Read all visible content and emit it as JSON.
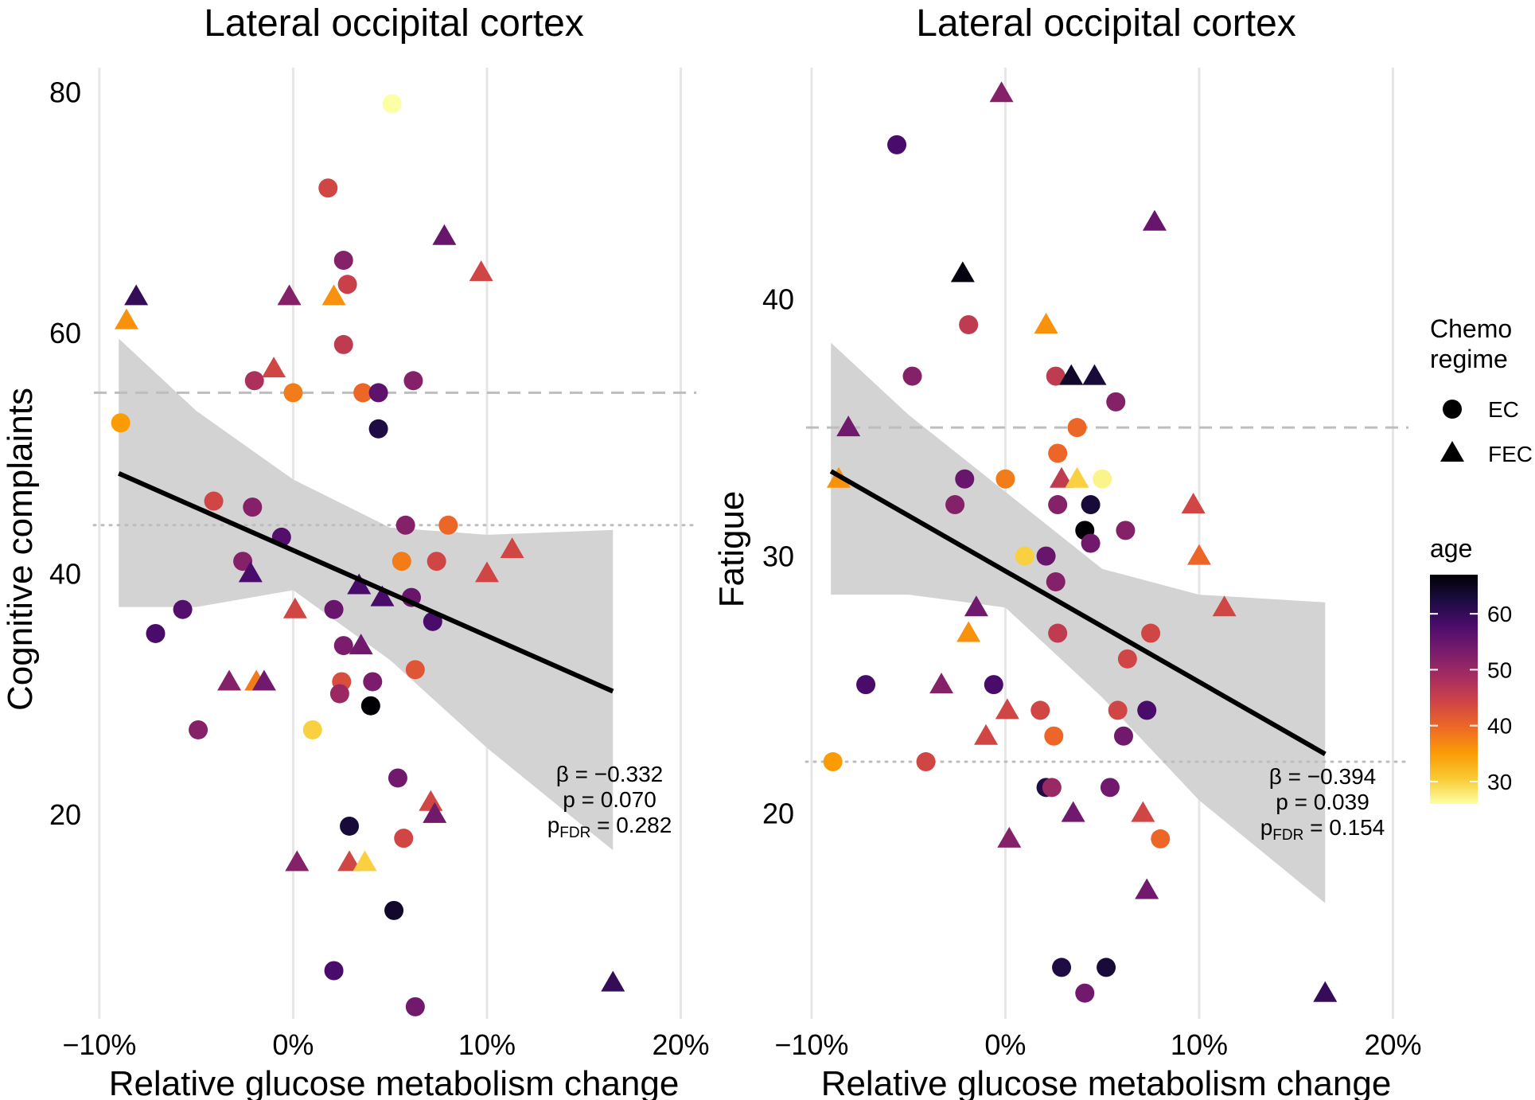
{
  "chart_data": [
    {
      "type": "scatter",
      "title": "Lateral occipital cortex",
      "xlabel": "Relative glucose metabolism change",
      "ylabel": "Cognitive complaints",
      "xlim": [
        -10.2,
        20.8
      ],
      "ylim": [
        3,
        82
      ],
      "xticks": [
        -10,
        0,
        10,
        20
      ],
      "xtick_labels": [
        "−10%",
        "0%",
        "10%",
        "20%"
      ],
      "yticks": [
        20,
        40,
        60,
        80
      ],
      "ytick_labels": [
        "20",
        "40",
        "60",
        "80"
      ],
      "hline_dashed": 55,
      "hline_dotted": 44,
      "fit": {
        "x0": -9,
        "y0": 48.3,
        "x1": 16.5,
        "y1": 30.2
      },
      "band": {
        "x": [
          -9,
          -5,
          0,
          5,
          10,
          16.5
        ],
        "upper": [
          59.5,
          53.5,
          47.8,
          43.8,
          43.2,
          43.6
        ],
        "lower": [
          37.2,
          37.2,
          38.6,
          32.8,
          25.5,
          17
        ]
      },
      "stats": {
        "beta": "β = −0.332",
        "p": "p = 0.070",
        "pfdr_prefix": "p",
        "pfdr_sub": "FDR",
        "pfdr_value": " = 0.282"
      },
      "points": [
        {
          "x": 5.1,
          "y": 79,
          "age": 26,
          "regime": "EC"
        },
        {
          "x": 1.8,
          "y": 72,
          "age": 44,
          "regime": "EC"
        },
        {
          "x": 2.6,
          "y": 66,
          "age": 52,
          "regime": "EC"
        },
        {
          "x": 2.8,
          "y": 64,
          "age": 45,
          "regime": "EC"
        },
        {
          "x": 2.6,
          "y": 59,
          "age": 46,
          "regime": "EC"
        },
        {
          "x": 6.2,
          "y": 56,
          "age": 52,
          "regime": "EC"
        },
        {
          "x": -2,
          "y": 56,
          "age": 48,
          "regime": "EC"
        },
        {
          "x": 0,
          "y": 55,
          "age": 38,
          "regime": "EC"
        },
        {
          "x": 3.6,
          "y": 55,
          "age": 40,
          "regime": "EC"
        },
        {
          "x": 4.4,
          "y": 55,
          "age": 56,
          "regime": "EC"
        },
        {
          "x": 4.4,
          "y": 52,
          "age": 62,
          "regime": "EC"
        },
        {
          "x": -8.9,
          "y": 52.5,
          "age": 35,
          "regime": "EC"
        },
        {
          "x": -4.1,
          "y": 46,
          "age": 44,
          "regime": "EC"
        },
        {
          "x": -2.1,
          "y": 45.5,
          "age": 52,
          "regime": "EC"
        },
        {
          "x": -0.6,
          "y": 43,
          "age": 57,
          "regime": "EC"
        },
        {
          "x": 5.8,
          "y": 44,
          "age": 52,
          "regime": "EC"
        },
        {
          "x": 8,
          "y": 44,
          "age": 40,
          "regime": "EC"
        },
        {
          "x": -2.6,
          "y": 41,
          "age": 52,
          "regime": "EC"
        },
        {
          "x": 5.6,
          "y": 41,
          "age": 38,
          "regime": "EC"
        },
        {
          "x": 7.4,
          "y": 41,
          "age": 44,
          "regime": "EC"
        },
        {
          "x": 6.1,
          "y": 38,
          "age": 55,
          "regime": "EC"
        },
        {
          "x": 7.2,
          "y": 36,
          "age": 58,
          "regime": "EC"
        },
        {
          "x": -5.7,
          "y": 37,
          "age": 57,
          "regime": "EC"
        },
        {
          "x": 2.1,
          "y": 37,
          "age": 55,
          "regime": "EC"
        },
        {
          "x": -7.1,
          "y": 35,
          "age": 58,
          "regime": "EC"
        },
        {
          "x": 2.6,
          "y": 34,
          "age": 53,
          "regime": "EC"
        },
        {
          "x": 6.3,
          "y": 32,
          "age": 42,
          "regime": "EC"
        },
        {
          "x": 2.5,
          "y": 31,
          "age": 43,
          "regime": "EC"
        },
        {
          "x": 4.1,
          "y": 31,
          "age": 53,
          "regime": "EC"
        },
        {
          "x": 2.4,
          "y": 30,
          "age": 50,
          "regime": "EC"
        },
        {
          "x": 4,
          "y": 29,
          "age": 67,
          "regime": "EC"
        },
        {
          "x": -4.9,
          "y": 27,
          "age": 52,
          "regime": "EC"
        },
        {
          "x": 1,
          "y": 27,
          "age": 30,
          "regime": "EC"
        },
        {
          "x": 5.4,
          "y": 23,
          "age": 54,
          "regime": "EC"
        },
        {
          "x": 2.9,
          "y": 19,
          "age": 63,
          "regime": "EC"
        },
        {
          "x": 5.7,
          "y": 18,
          "age": 44,
          "regime": "EC"
        },
        {
          "x": 5.2,
          "y": 12,
          "age": 64,
          "regime": "EC"
        },
        {
          "x": 2.1,
          "y": 7,
          "age": 58,
          "regime": "EC"
        },
        {
          "x": 6.3,
          "y": 4,
          "age": 54,
          "regime": "EC"
        },
        {
          "x": 7.8,
          "y": 68,
          "age": 55,
          "regime": "FEC"
        },
        {
          "x": 9.7,
          "y": 65,
          "age": 44,
          "regime": "FEC"
        },
        {
          "x": -8.1,
          "y": 63,
          "age": 60,
          "regime": "FEC"
        },
        {
          "x": -0.2,
          "y": 63,
          "age": 52,
          "regime": "FEC"
        },
        {
          "x": 2.1,
          "y": 63,
          "age": 36,
          "regime": "FEC"
        },
        {
          "x": -8.6,
          "y": 61,
          "age": 36,
          "regime": "FEC"
        },
        {
          "x": -1,
          "y": 57,
          "age": 44,
          "regime": "FEC"
        },
        {
          "x": 11.3,
          "y": 42,
          "age": 44,
          "regime": "FEC"
        },
        {
          "x": -2.2,
          "y": 40,
          "age": 58,
          "regime": "FEC"
        },
        {
          "x": 10,
          "y": 40,
          "age": 44,
          "regime": "FEC"
        },
        {
          "x": 3.4,
          "y": 39,
          "age": 58,
          "regime": "FEC"
        },
        {
          "x": 4.6,
          "y": 38,
          "age": 58,
          "regime": "FEC"
        },
        {
          "x": 0.1,
          "y": 37,
          "age": 44,
          "regime": "FEC"
        },
        {
          "x": 3.5,
          "y": 34,
          "age": 54,
          "regime": "FEC"
        },
        {
          "x": -3.3,
          "y": 31,
          "age": 52,
          "regime": "FEC"
        },
        {
          "x": -1.9,
          "y": 31,
          "age": 38,
          "regime": "FEC"
        },
        {
          "x": -1.5,
          "y": 31,
          "age": 54,
          "regime": "FEC"
        },
        {
          "x": 7.1,
          "y": 21,
          "age": 44,
          "regime": "FEC"
        },
        {
          "x": 7.3,
          "y": 20,
          "age": 54,
          "regime": "FEC"
        },
        {
          "x": 0.2,
          "y": 16,
          "age": 52,
          "regime": "FEC"
        },
        {
          "x": 2.9,
          "y": 16,
          "age": 44,
          "regime": "FEC"
        },
        {
          "x": 3.7,
          "y": 16,
          "age": 30,
          "regime": "FEC"
        },
        {
          "x": 16.5,
          "y": 6,
          "age": 60,
          "regime": "FEC"
        }
      ]
    },
    {
      "type": "scatter",
      "title": "Lateral occipital cortex",
      "xlabel": "Relative glucose metabolism change",
      "ylabel": "Fatigue",
      "xlim": [
        -10.2,
        20.8
      ],
      "ylim": [
        12,
        49
      ],
      "xticks": [
        -10,
        0,
        10,
        20
      ],
      "xtick_labels": [
        "−10%",
        "0%",
        "10%",
        "20%"
      ],
      "yticks": [
        20,
        30,
        40
      ],
      "ytick_labels": [
        "20",
        "30",
        "40"
      ],
      "hline_dashed": 35,
      "hline_dotted": 22,
      "fit": {
        "x0": -9,
        "y0": 33.3,
        "x1": 16.5,
        "y1": 22.3
      },
      "band": {
        "x": [
          -9,
          -5,
          0,
          5,
          10,
          16.5
        ],
        "upper": [
          38.3,
          35.5,
          32.5,
          29.5,
          28.5,
          28.2
        ],
        "lower": [
          28.5,
          28.5,
          28,
          24.5,
          20.5,
          16.5
        ]
      },
      "stats": {
        "beta": "β = −0.394",
        "p": "p = 0.039",
        "pfdr_prefix": "p",
        "pfdr_sub": "FDR",
        "pfdr_value": " = 0.154"
      },
      "points": [
        {
          "x": -5.6,
          "y": 46,
          "age": 58,
          "regime": "EC"
        },
        {
          "x": -1.9,
          "y": 39,
          "age": 46,
          "regime": "EC"
        },
        {
          "x": -4.8,
          "y": 37,
          "age": 52,
          "regime": "EC"
        },
        {
          "x": 2.6,
          "y": 37,
          "age": 46,
          "regime": "EC"
        },
        {
          "x": 5.7,
          "y": 36,
          "age": 52,
          "regime": "EC"
        },
        {
          "x": 3.7,
          "y": 35,
          "age": 40,
          "regime": "EC"
        },
        {
          "x": 2.7,
          "y": 34,
          "age": 40,
          "regime": "EC"
        },
        {
          "x": -2.1,
          "y": 33,
          "age": 55,
          "regime": "EC"
        },
        {
          "x": 0,
          "y": 33,
          "age": 38,
          "regime": "EC"
        },
        {
          "x": 5,
          "y": 33,
          "age": 27,
          "regime": "EC"
        },
        {
          "x": -2.6,
          "y": 32,
          "age": 52,
          "regime": "EC"
        },
        {
          "x": 2.7,
          "y": 32,
          "age": 52,
          "regime": "EC"
        },
        {
          "x": 4.4,
          "y": 32,
          "age": 63,
          "regime": "EC"
        },
        {
          "x": 4.1,
          "y": 31,
          "age": 67,
          "regime": "EC"
        },
        {
          "x": 6.2,
          "y": 31,
          "age": 52,
          "regime": "EC"
        },
        {
          "x": 4.4,
          "y": 30.5,
          "age": 54,
          "regime": "EC"
        },
        {
          "x": 1,
          "y": 30,
          "age": 30,
          "regime": "EC"
        },
        {
          "x": 2.1,
          "y": 30,
          "age": 55,
          "regime": "EC"
        },
        {
          "x": 2.6,
          "y": 29,
          "age": 52,
          "regime": "EC"
        },
        {
          "x": 2.7,
          "y": 27,
          "age": 46,
          "regime": "EC"
        },
        {
          "x": 7.5,
          "y": 27,
          "age": 44,
          "regime": "EC"
        },
        {
          "x": 6.3,
          "y": 26,
          "age": 44,
          "regime": "EC"
        },
        {
          "x": -7.2,
          "y": 25,
          "age": 58,
          "regime": "EC"
        },
        {
          "x": -0.6,
          "y": 25,
          "age": 58,
          "regime": "EC"
        },
        {
          "x": 1.8,
          "y": 24,
          "age": 44,
          "regime": "EC"
        },
        {
          "x": 5.8,
          "y": 24,
          "age": 44,
          "regime": "EC"
        },
        {
          "x": 7.3,
          "y": 24,
          "age": 58,
          "regime": "EC"
        },
        {
          "x": 2.5,
          "y": 23,
          "age": 40,
          "regime": "EC"
        },
        {
          "x": 6.1,
          "y": 23,
          "age": 54,
          "regime": "EC"
        },
        {
          "x": -8.9,
          "y": 22,
          "age": 35,
          "regime": "EC"
        },
        {
          "x": -4.1,
          "y": 22,
          "age": 44,
          "regime": "EC"
        },
        {
          "x": 2.1,
          "y": 21,
          "age": 62,
          "regime": "EC"
        },
        {
          "x": 2.4,
          "y": 21,
          "age": 50,
          "regime": "EC"
        },
        {
          "x": 5.4,
          "y": 21,
          "age": 54,
          "regime": "EC"
        },
        {
          "x": 8,
          "y": 19,
          "age": 40,
          "regime": "EC"
        },
        {
          "x": 2.9,
          "y": 14,
          "age": 62,
          "regime": "EC"
        },
        {
          "x": 5.2,
          "y": 14,
          "age": 63,
          "regime": "EC"
        },
        {
          "x": 4.1,
          "y": 13,
          "age": 54,
          "regime": "EC"
        },
        {
          "x": -0.2,
          "y": 48,
          "age": 52,
          "regime": "FEC"
        },
        {
          "x": 7.7,
          "y": 43,
          "age": 55,
          "regime": "FEC"
        },
        {
          "x": -2.2,
          "y": 41,
          "age": 66,
          "regime": "FEC"
        },
        {
          "x": 2.1,
          "y": 39,
          "age": 36,
          "regime": "FEC"
        },
        {
          "x": 3.4,
          "y": 37,
          "age": 64,
          "regime": "FEC"
        },
        {
          "x": 4.6,
          "y": 37,
          "age": 63,
          "regime": "FEC"
        },
        {
          "x": -8.1,
          "y": 35,
          "age": 54,
          "regime": "FEC"
        },
        {
          "x": -8.6,
          "y": 33,
          "age": 36,
          "regime": "FEC"
        },
        {
          "x": 2.9,
          "y": 33,
          "age": 46,
          "regime": "FEC"
        },
        {
          "x": 3.7,
          "y": 33,
          "age": 30,
          "regime": "FEC"
        },
        {
          "x": 9.7,
          "y": 32,
          "age": 44,
          "regime": "FEC"
        },
        {
          "x": 10,
          "y": 30,
          "age": 40,
          "regime": "FEC"
        },
        {
          "x": -1.5,
          "y": 28,
          "age": 54,
          "regime": "FEC"
        },
        {
          "x": 11.3,
          "y": 28,
          "age": 44,
          "regime": "FEC"
        },
        {
          "x": -1.9,
          "y": 27,
          "age": 36,
          "regime": "FEC"
        },
        {
          "x": -3.3,
          "y": 25,
          "age": 52,
          "regime": "FEC"
        },
        {
          "x": 0.1,
          "y": 24,
          "age": 44,
          "regime": "FEC"
        },
        {
          "x": -1,
          "y": 23,
          "age": 44,
          "regime": "FEC"
        },
        {
          "x": 3.5,
          "y": 20,
          "age": 54,
          "regime": "FEC"
        },
        {
          "x": 7.1,
          "y": 20,
          "age": 44,
          "regime": "FEC"
        },
        {
          "x": 0.2,
          "y": 19,
          "age": 52,
          "regime": "FEC"
        },
        {
          "x": 7.3,
          "y": 17,
          "age": 54,
          "regime": "FEC"
        },
        {
          "x": 16.5,
          "y": 13,
          "age": 60,
          "regime": "FEC"
        }
      ]
    }
  ],
  "legend": {
    "shape_title_line1": "Chemo",
    "shape_title_line2": "regime",
    "shape_items": [
      "EC",
      "FEC"
    ],
    "color_title": "age",
    "color_ticks": [
      "30",
      "40",
      "50",
      "60"
    ],
    "color_tick_values": [
      30,
      40,
      50,
      60
    ],
    "color_range": [
      26,
      67
    ],
    "colors": [
      "#fcffa4",
      "#f9c932",
      "#fb9b06",
      "#ed6925",
      "#cf4446",
      "#a52c60",
      "#781c6d",
      "#4a0c6b",
      "#1b0c41",
      "#000004"
    ]
  }
}
